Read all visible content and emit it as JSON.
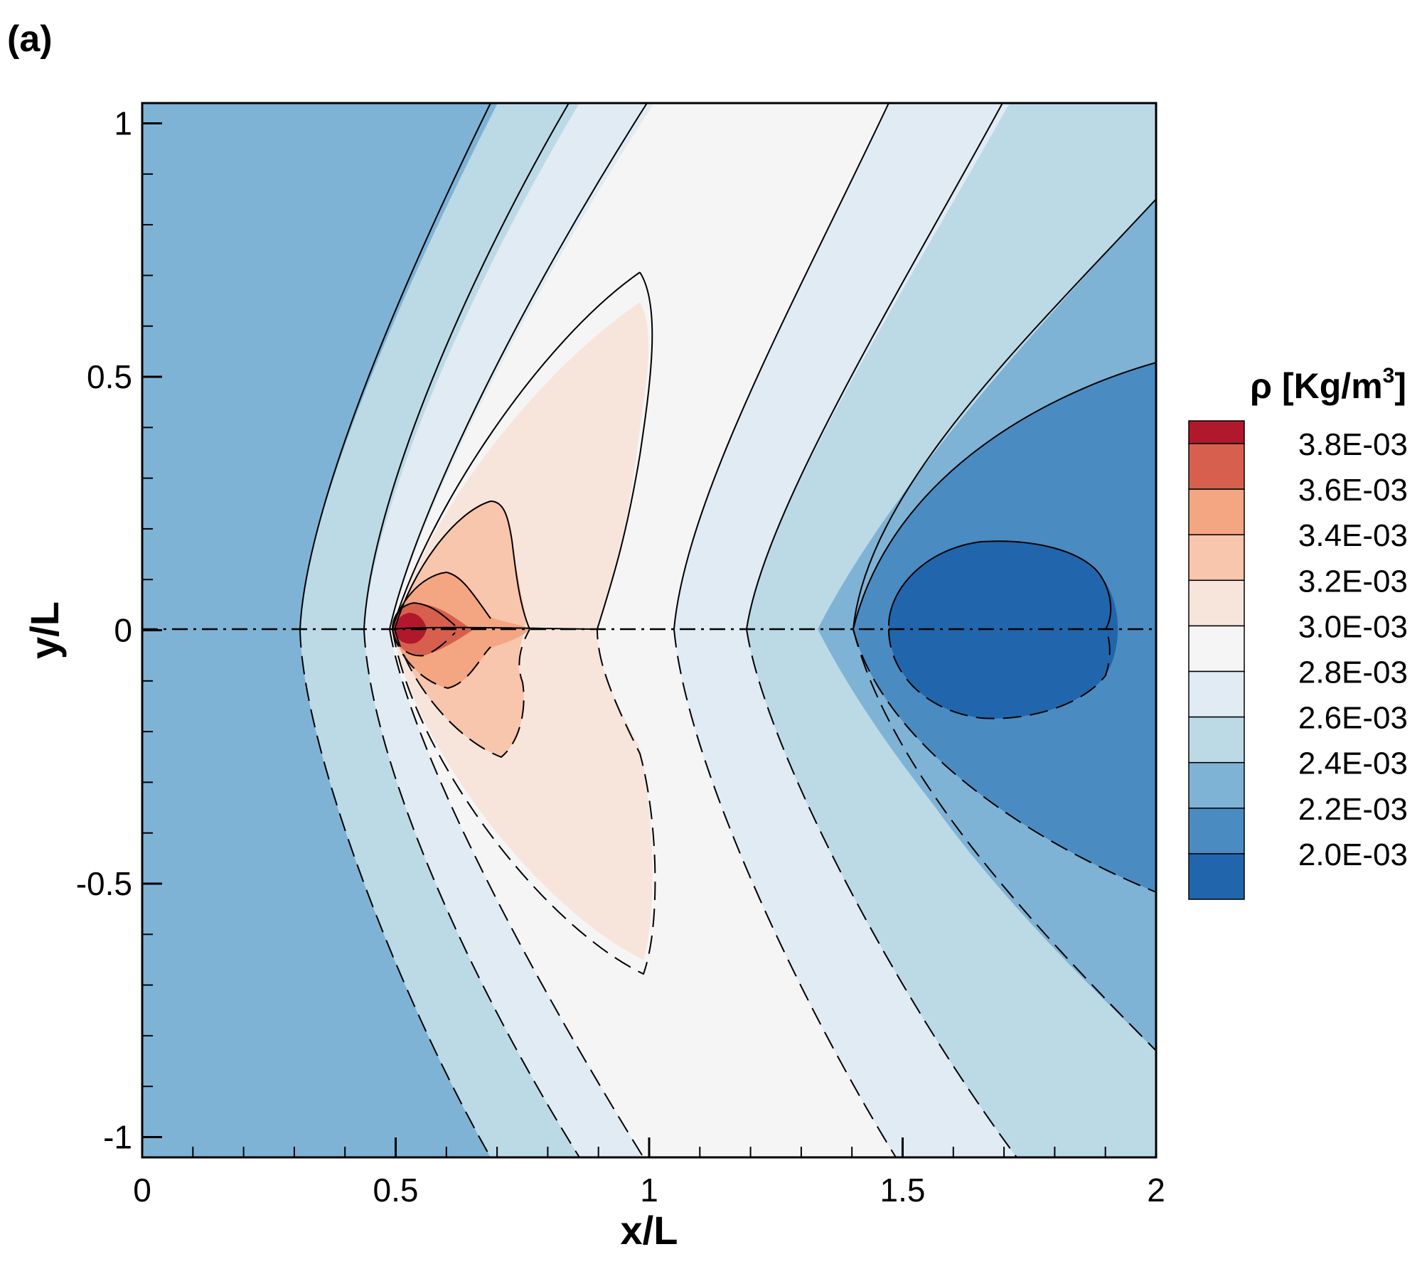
{
  "panel_label": "(a)",
  "chart_data": {
    "type": "heatmap",
    "title": "",
    "xlabel": "x/L",
    "ylabel": "y/L",
    "xlim": [
      0,
      2
    ],
    "ylim": [
      -1.04,
      1.04
    ],
    "xticks": [
      0,
      0.5,
      1,
      1.5,
      2
    ],
    "xtick_labels": [
      "0",
      "0.5",
      "1",
      "1.5",
      "2"
    ],
    "xminor_step": 0.1,
    "yticks": [
      -1,
      -0.5,
      0,
      0.5,
      1
    ],
    "ytick_labels": [
      "-1",
      "-0.5",
      "0",
      "0.5",
      "1"
    ],
    "yminor_step": 0.1,
    "grid": false,
    "colorbar": {
      "title": "ρ [Kg/m",
      "title_sup": "3",
      "title_end": "]",
      "placement": "right",
      "levels": [
        0.0038,
        0.0036,
        0.0034,
        0.0032,
        0.003,
        0.0028,
        0.0026,
        0.0024,
        0.0022,
        0.002
      ],
      "labels": [
        "3.8E-03",
        "3.6E-03",
        "3.4E-03",
        "3.2E-03",
        "3.0E-03",
        "2.8E-03",
        "2.6E-03",
        "2.4E-03",
        "2.2E-03",
        "2.0E-03"
      ],
      "colors": [
        "#b2182b",
        "#d6604d",
        "#f4a582",
        "#f8c5ad",
        "#f7e5dc",
        "#f5f5f5",
        "#e0ebf3",
        "#bcd9e6",
        "#7fb3d5",
        "#4a8cc2",
        "#2166ac"
      ]
    },
    "contour_line_style_upper": "solid",
    "contour_line_style_lower": "dashed",
    "centerline_style": "dash-dot",
    "density_peak": {
      "x": 0.52,
      "y": 0.0
    },
    "low_density_core": {
      "x": 1.68,
      "y": 0.0
    }
  }
}
